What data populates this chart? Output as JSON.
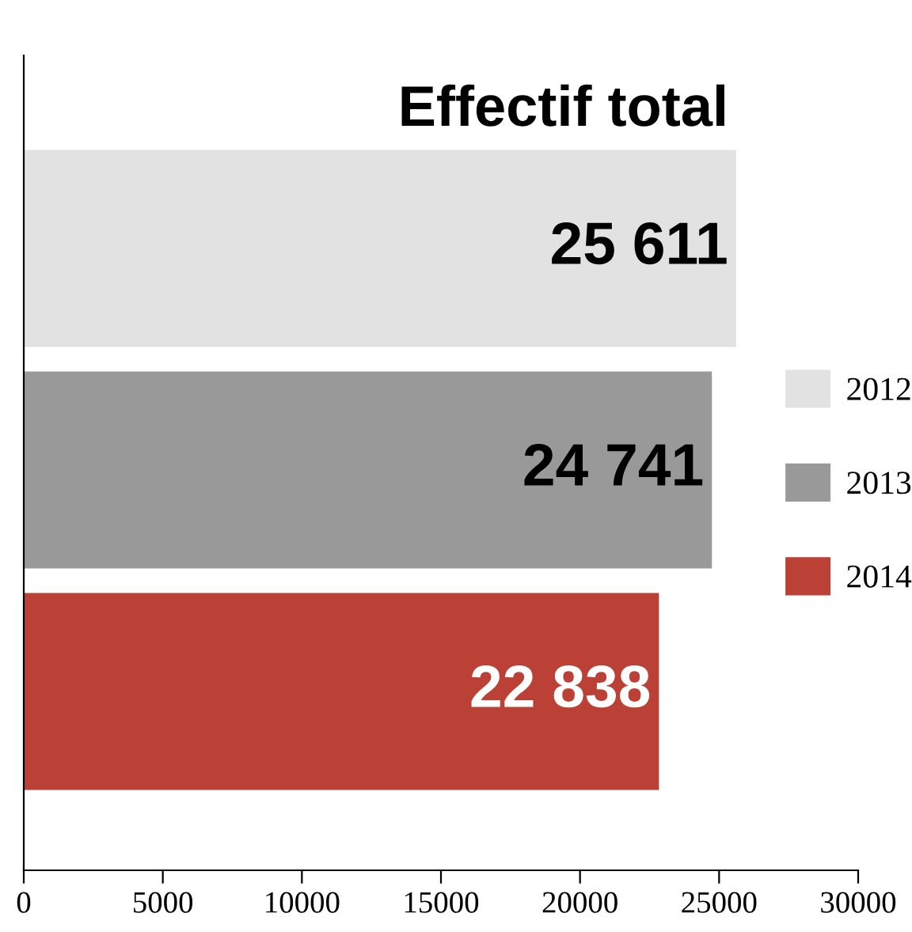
{
  "chart_data": {
    "type": "bar",
    "orientation": "horizontal",
    "title": "Effectif total",
    "categories": [
      null,
      null,
      null
    ],
    "series": [
      {
        "name": "2012",
        "color": "#e2e2e2",
        "values": [
          25611,
          null,
          null
        ],
        "value_labels": [
          "25 611",
          null,
          null
        ]
      },
      {
        "name": "2013",
        "color": "#999999",
        "values": [
          null,
          24741,
          null
        ],
        "value_labels": [
          null,
          "24 741",
          null
        ]
      },
      {
        "name": "2014",
        "color": "#bb4036",
        "values": [
          null,
          null,
          22838
        ],
        "value_labels": [
          null,
          null,
          "22 838"
        ]
      }
    ],
    "xlim": [
      0,
      30000
    ],
    "xticks": [
      0,
      5000,
      10000,
      15000,
      20000,
      25000,
      30000
    ],
    "tick_labels": "x",
    "grid": false,
    "legend": "right"
  }
}
